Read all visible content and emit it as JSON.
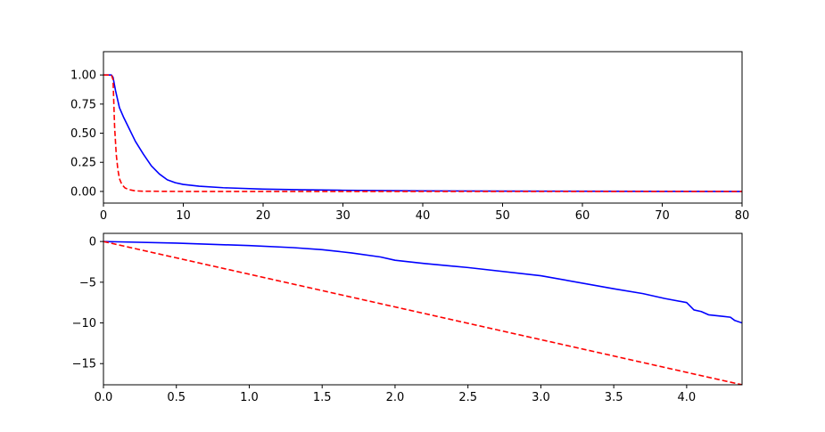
{
  "chart_data": [
    {
      "type": "line",
      "xlim": [
        0,
        80
      ],
      "ylim": [
        -0.1,
        1.2
      ],
      "xticks": [
        0,
        10,
        20,
        30,
        40,
        50,
        60,
        70,
        80
      ],
      "xtick_labels": [
        "0",
        "10",
        "20",
        "30",
        "40",
        "50",
        "60",
        "70",
        "80"
      ],
      "yticks": [
        0.0,
        0.25,
        0.5,
        0.75,
        1.0
      ],
      "ytick_labels": [
        "0.00",
        "0.25",
        "0.50",
        "0.75",
        "1.00"
      ],
      "grid": false,
      "series": [
        {
          "color": "#0000ff",
          "style": "solid",
          "x": [
            0,
            1,
            1.2,
            1.5,
            2,
            2.5,
            3,
            4,
            5,
            6,
            7,
            8,
            9,
            10,
            12,
            15,
            20,
            25,
            30,
            40,
            50,
            60,
            70,
            80
          ],
          "y": [
            1.0,
            1.0,
            0.98,
            0.87,
            0.72,
            0.64,
            0.57,
            0.43,
            0.32,
            0.22,
            0.15,
            0.1,
            0.075,
            0.06,
            0.045,
            0.032,
            0.02,
            0.014,
            0.01,
            0.005,
            0.003,
            0.002,
            0.001,
            0.0
          ]
        },
        {
          "color": "#ff0000",
          "style": "dashed",
          "x": [
            0,
            1,
            1.2,
            1.4,
            1.6,
            1.8,
            2.0,
            2.3,
            2.7,
            3.2,
            4,
            5,
            10,
            20,
            40,
            60,
            80
          ],
          "y": [
            1.0,
            1.0,
            0.96,
            0.55,
            0.32,
            0.19,
            0.11,
            0.06,
            0.03,
            0.015,
            0.005,
            0.002,
            0.0,
            0.0,
            0.0,
            0.0,
            0.0
          ]
        }
      ]
    },
    {
      "type": "line",
      "xlim": [
        0,
        4.38
      ],
      "ylim": [
        -17.6,
        1.0
      ],
      "xticks": [
        0.0,
        0.5,
        1.0,
        1.5,
        2.0,
        2.5,
        3.0,
        3.5,
        4.0
      ],
      "xtick_labels": [
        "0.0",
        "0.5",
        "1.0",
        "1.5",
        "2.0",
        "2.5",
        "3.0",
        "3.5",
        "4.0"
      ],
      "yticks": [
        0,
        -5,
        -10,
        -15
      ],
      "ytick_labels": [
        "0",
        "−5",
        "−10",
        "−15"
      ],
      "grid": false,
      "series": [
        {
          "color": "#0000ff",
          "style": "solid",
          "x": [
            0,
            0.5,
            1.0,
            1.3,
            1.5,
            1.7,
            1.9,
            2.0,
            2.2,
            2.5,
            3.0,
            3.5,
            3.7,
            3.85,
            4.0,
            4.05,
            4.1,
            4.15,
            4.2,
            4.25,
            4.3,
            4.33,
            4.38
          ],
          "y": [
            0,
            -0.2,
            -0.5,
            -0.75,
            -1.0,
            -1.4,
            -1.9,
            -2.3,
            -2.7,
            -3.2,
            -4.2,
            -5.8,
            -6.4,
            -7.0,
            -7.5,
            -8.4,
            -8.6,
            -9.0,
            -9.1,
            -9.2,
            -9.3,
            -9.7,
            -10.0
          ]
        },
        {
          "color": "#ff0000",
          "style": "dashed",
          "x": [
            0,
            4.38
          ],
          "y": [
            0,
            -17.6
          ]
        }
      ]
    }
  ]
}
